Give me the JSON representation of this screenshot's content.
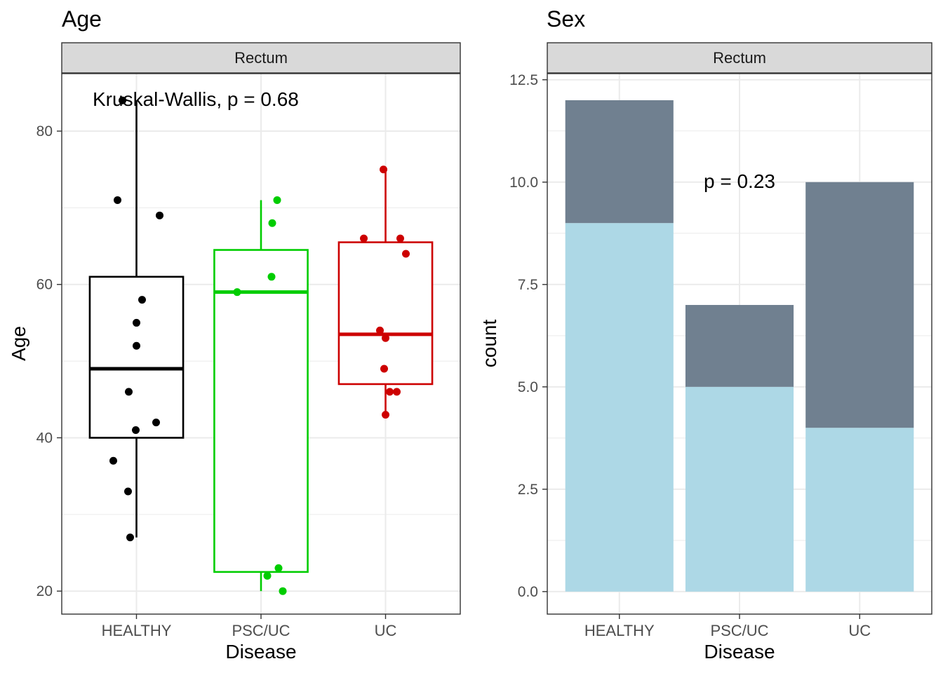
{
  "chart_data": [
    {
      "type": "box",
      "title": "Age",
      "facet": "Rectum",
      "xlabel": "Disease",
      "ylabel": "Age",
      "categories": [
        "HEALTHY",
        "PSC/UC",
        "UC"
      ],
      "colors": [
        "#000000",
        "#00cd00",
        "#cd0000"
      ],
      "ylim": [
        17,
        87.5
      ],
      "yticks": [
        20,
        40,
        60,
        80
      ],
      "annotation": "Kruskal-Wallis, p = 0.68",
      "boxes": [
        {
          "category": "HEALTHY",
          "q1": 40,
          "median": 49,
          "q3": 61,
          "whisker_low": 27,
          "whisker_high": 84
        },
        {
          "category": "PSC/UC",
          "q1": 22.5,
          "median": 59,
          "q3": 64.5,
          "whisker_low": 20,
          "whisker_high": 71
        },
        {
          "category": "UC",
          "q1": 47,
          "median": 53.5,
          "q3": 65.5,
          "whisker_low": 43,
          "whisker_high": 75
        }
      ],
      "points": [
        {
          "category": "HEALTHY",
          "values": [
            84,
            71,
            69,
            58,
            55,
            52,
            46,
            42,
            41,
            37,
            33,
            27
          ]
        },
        {
          "category": "PSC/UC",
          "values": [
            71,
            68,
            61,
            59,
            23,
            22,
            20
          ]
        },
        {
          "category": "UC",
          "values": [
            75,
            66,
            66,
            64,
            54,
            53,
            49,
            46,
            46,
            43
          ]
        }
      ]
    },
    {
      "type": "bar",
      "stacked": true,
      "title": "Sex",
      "facet": "Rectum",
      "xlabel": "Disease",
      "ylabel": "count",
      "categories": [
        "HEALTHY",
        "PSC/UC",
        "UC"
      ],
      "ylim": [
        -0.55,
        12.65
      ],
      "yticks": [
        0.0,
        2.5,
        5.0,
        7.5,
        10.0,
        12.5
      ],
      "ytick_labels": [
        "0.0",
        "2.5",
        "5.0",
        "7.5",
        "10.0",
        "12.5"
      ],
      "annotation": "p = 0.23",
      "series": [
        {
          "values": [
            9,
            5,
            4
          ],
          "color": "#add8e6"
        },
        {
          "values": [
            3,
            2,
            6
          ],
          "color": "#708090"
        }
      ]
    }
  ]
}
